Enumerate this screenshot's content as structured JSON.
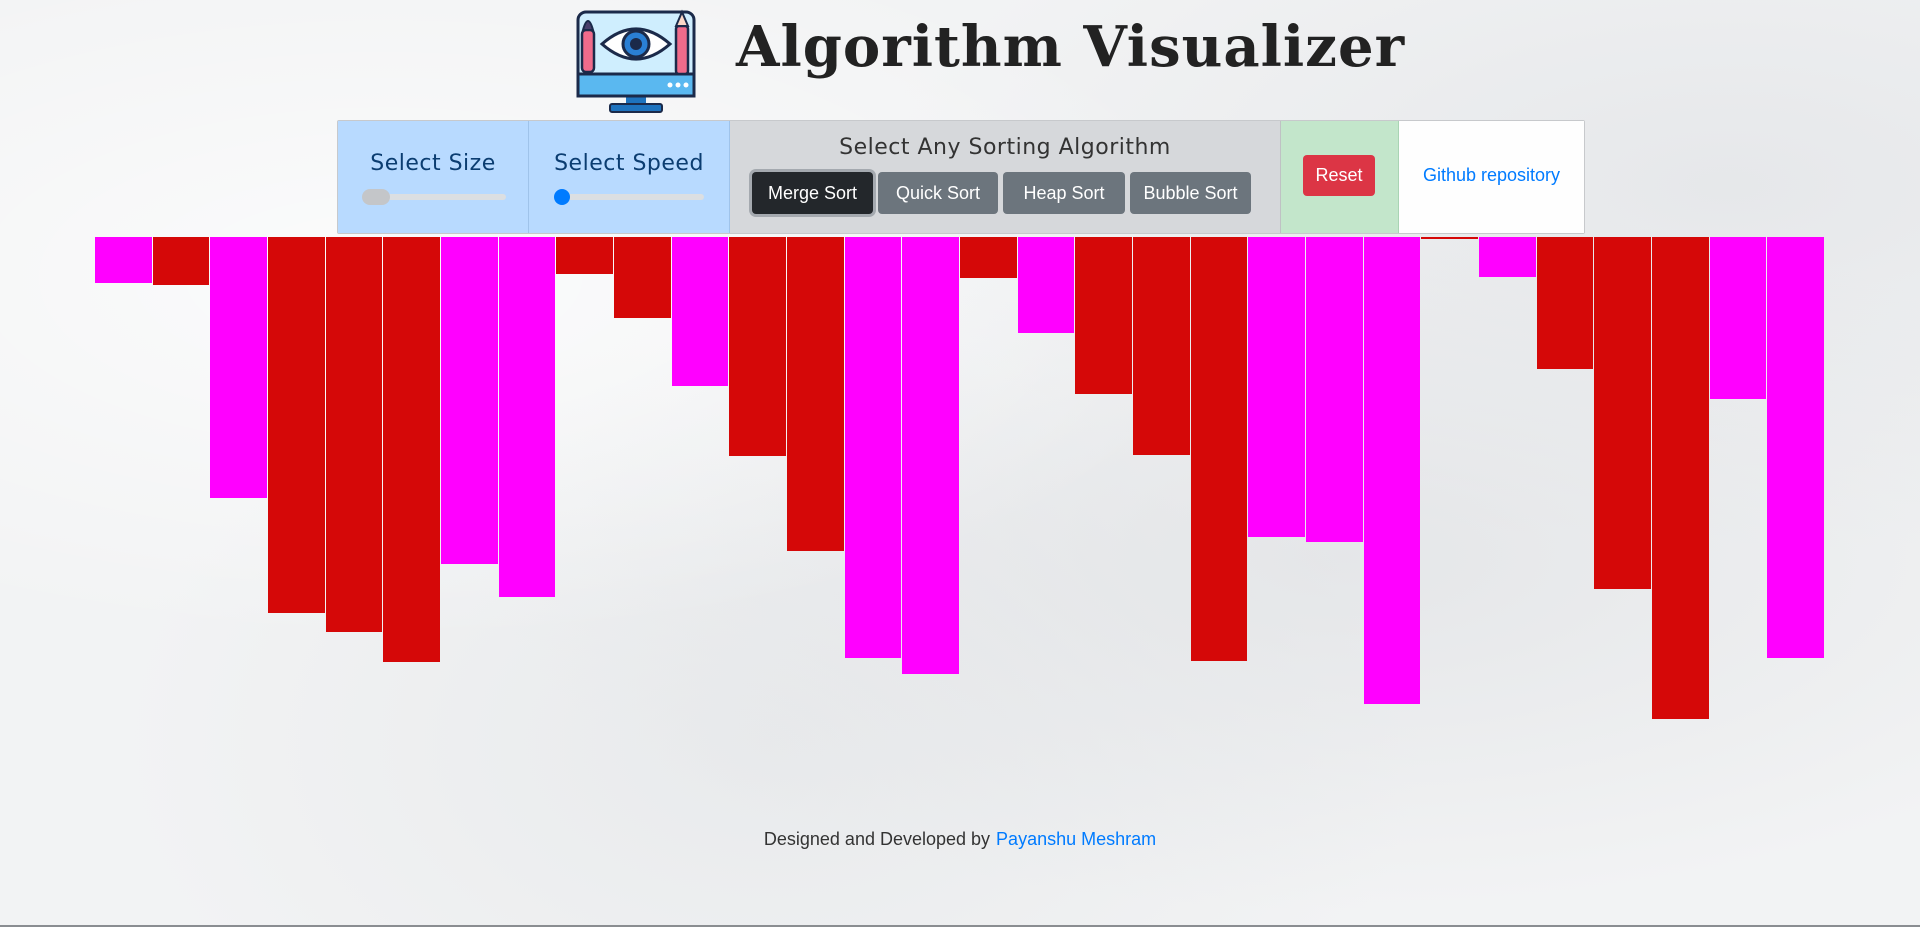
{
  "header": {
    "title": "Algorithm Visualizer",
    "logo_icon": "monitor-eye-brush-pencil-icon"
  },
  "toolbar": {
    "size_label": "Select Size",
    "size_value_fraction": 0.0,
    "speed_label": "Select Speed",
    "speed_value_fraction": 0.0,
    "algo_label": "Select Any Sorting Algorithm",
    "algorithms": [
      {
        "label": "Merge Sort",
        "active": true
      },
      {
        "label": "Quick Sort",
        "active": false
      },
      {
        "label": "Heap Sort",
        "active": false
      },
      {
        "label": "Bubble Sort",
        "active": false
      }
    ],
    "reset_label": "Reset",
    "github_label": "Github repository"
  },
  "colors": {
    "bar_magenta": "#ff00ff",
    "bar_red": "#d50808",
    "accent_blue": "#007bff",
    "reset_red": "#dc3545"
  },
  "bars": {
    "values": [
      46,
      48,
      261,
      376,
      395,
      425,
      327,
      360,
      37,
      81,
      149,
      219,
      314,
      421,
      437,
      41,
      96,
      157,
      218,
      424,
      300,
      305,
      467,
      2,
      40,
      132,
      352,
      482,
      162,
      421
    ],
    "colors": [
      "magenta",
      "red",
      "magenta",
      "red",
      "red",
      "red",
      "magenta",
      "magenta",
      "red",
      "red",
      "magenta",
      "red",
      "red",
      "magenta",
      "magenta",
      "red",
      "magenta",
      "red",
      "red",
      "red",
      "magenta",
      "magenta",
      "magenta",
      "red",
      "magenta",
      "red",
      "red",
      "red",
      "magenta",
      "magenta"
    ]
  },
  "footer": {
    "prefix": "Designed and Developed by",
    "author": "Payanshu Meshram"
  }
}
